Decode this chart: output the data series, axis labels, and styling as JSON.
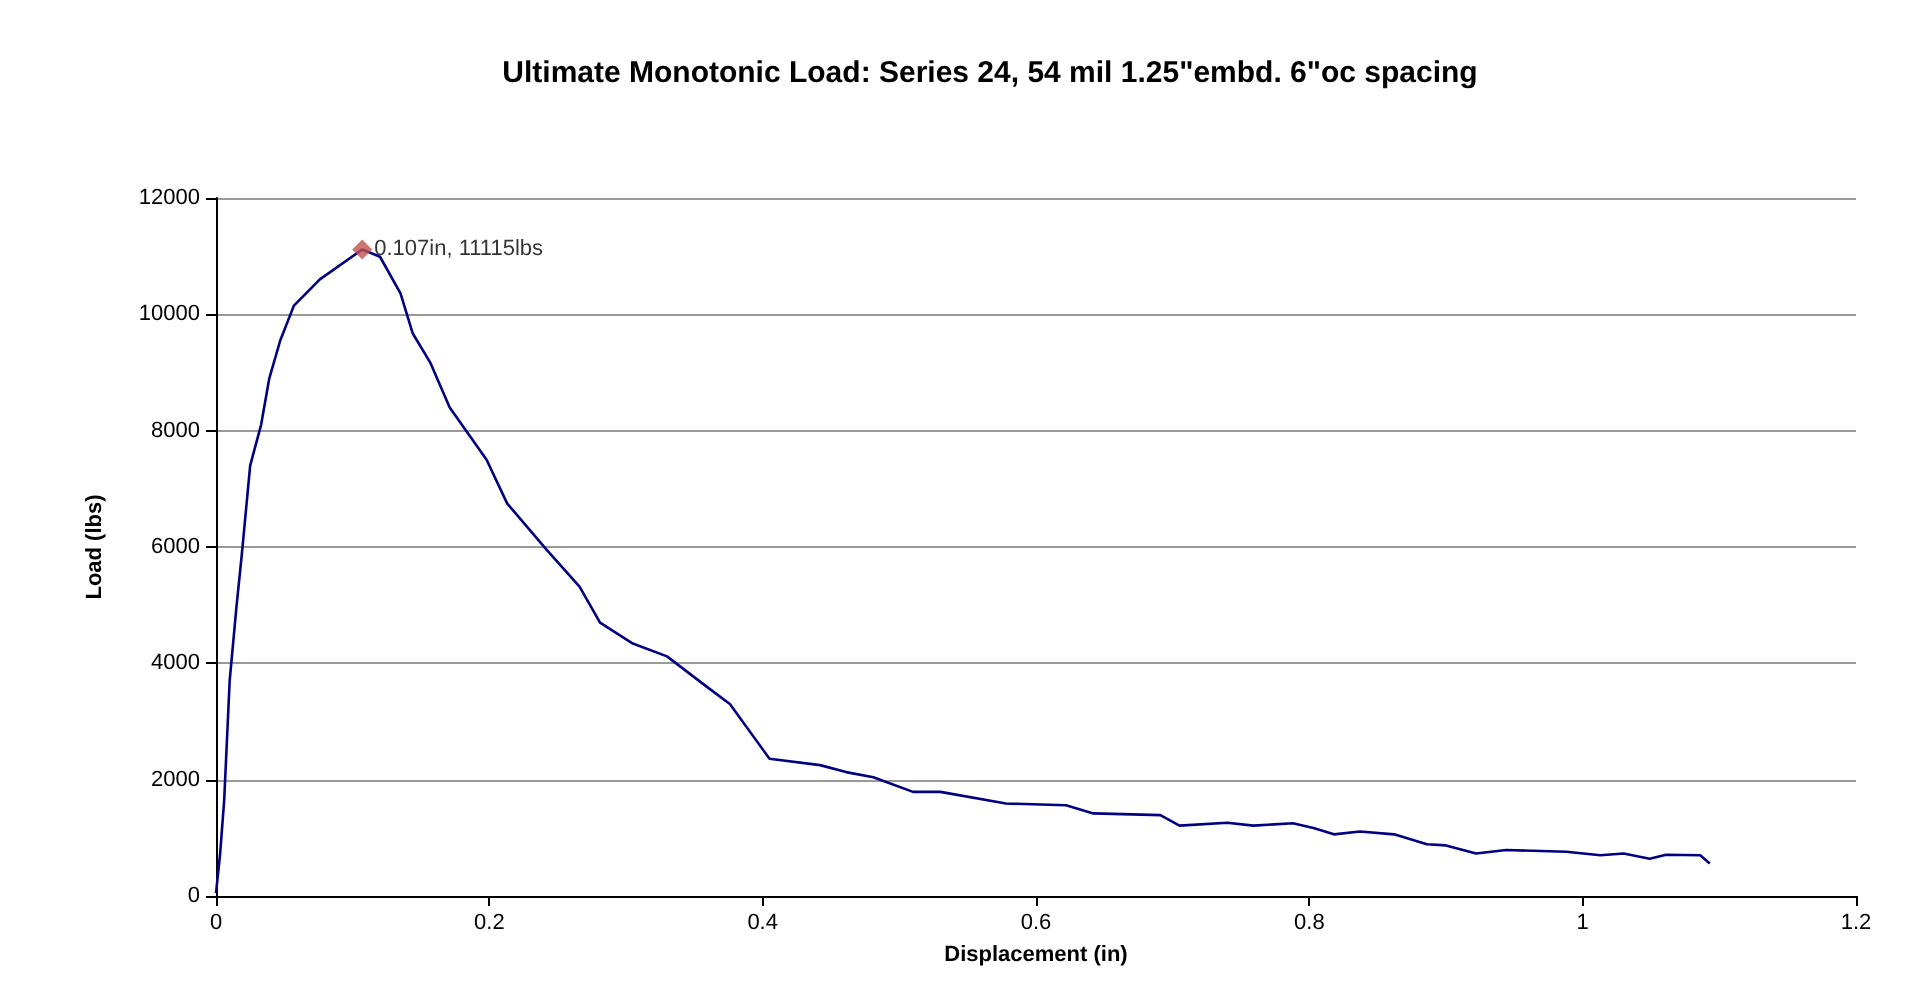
{
  "chart_data": {
    "type": "line",
    "title": "Ultimate Monotonic Load: Series 24, 54 mil 1.25\"embd. 6\"oc spacing",
    "xlabel": "Displacement (in)",
    "ylabel": "Load (lbs)",
    "xlim": [
      0,
      1.2
    ],
    "xticks": [
      0,
      0.2,
      0.4,
      0.6,
      0.8,
      1,
      1.2
    ],
    "ylim": [
      0,
      12000
    ],
    "yticks": [
      0,
      2000,
      4000,
      6000,
      8000,
      10000,
      12000
    ],
    "grid": "y",
    "series": [
      {
        "color": "#000080",
        "marker": "none",
        "x": [
          0,
          0.003,
          0.006,
          0.01,
          0.015,
          0.019,
          0.025,
          0.033,
          0.039,
          0.047,
          0.057,
          0.076,
          0.107,
          0.12,
          0.135,
          0.144,
          0.157,
          0.171,
          0.198,
          0.213,
          0.242,
          0.266,
          0.281,
          0.305,
          0.33,
          0.359,
          0.376,
          0.405,
          0.442,
          0.461,
          0.481,
          0.51,
          0.53,
          0.578,
          0.622,
          0.642,
          0.691,
          0.705,
          0.74,
          0.759,
          0.788,
          0.803,
          0.818,
          0.837,
          0.862,
          0.886,
          0.9,
          0.922,
          0.944,
          0.988,
          1.013,
          1.03,
          1.049,
          1.061,
          1.086,
          1.093
        ],
        "values": [
          50,
          720,
          1650,
          3700,
          4980,
          5900,
          7400,
          8100,
          8900,
          9550,
          10150,
          10600,
          11115,
          10990,
          10360,
          9670,
          9160,
          8400,
          7500,
          6750,
          5950,
          5320,
          4700,
          4340,
          4120,
          3600,
          3300,
          2360,
          2250,
          2130,
          2040,
          1790,
          1790,
          1590,
          1560,
          1420,
          1390,
          1210,
          1260,
          1210,
          1250,
          1170,
          1060,
          1110,
          1060,
          890,
          870,
          730,
          790,
          760,
          700,
          730,
          640,
          710,
          700,
          560
        ]
      },
      {
        "type": "scatter",
        "color": "#c0504d",
        "marker": "diamond",
        "x": [
          0.107
        ],
        "values": [
          11115
        ]
      }
    ],
    "annotations": [
      {
        "text": "0.107in, 11115lbs",
        "x": 0.107,
        "y": 11115
      }
    ]
  }
}
